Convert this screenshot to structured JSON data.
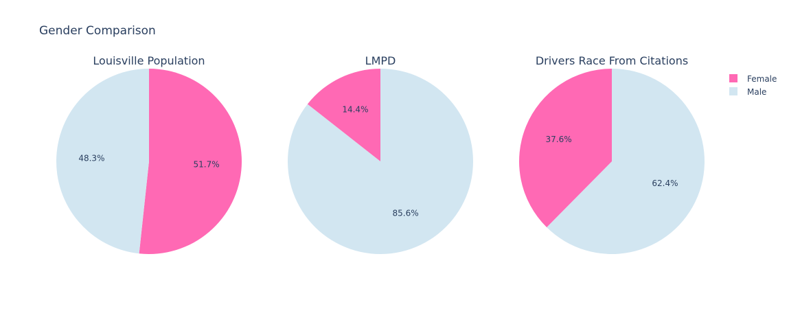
{
  "chart_data": {
    "type": "pie",
    "title": "Gender Comparison",
    "legend": {
      "placement": "top-right",
      "entries": [
        "Female",
        "Male"
      ]
    },
    "colors": {
      "Female": "#ff69b4",
      "Male": "#d2e6f1"
    },
    "text_color": "#2a3f5f",
    "start_angle_deg": 90,
    "direction": "clockwise",
    "pies": [
      {
        "name": "Louisville Population",
        "slices": [
          {
            "label": "Female",
            "value": 51.7,
            "text": "51.7%"
          },
          {
            "label": "Male",
            "value": 48.3,
            "text": "48.3%"
          }
        ]
      },
      {
        "name": "LMPD",
        "slices": [
          {
            "label": "Male",
            "value": 85.6,
            "text": "85.6%"
          },
          {
            "label": "Female",
            "value": 14.4,
            "text": "14.4%"
          }
        ]
      },
      {
        "name": "Drivers Race From Citations",
        "slices": [
          {
            "label": "Male",
            "value": 62.4,
            "text": "62.4%"
          },
          {
            "label": "Female",
            "value": 37.6,
            "text": "37.6%"
          }
        ]
      }
    ]
  }
}
